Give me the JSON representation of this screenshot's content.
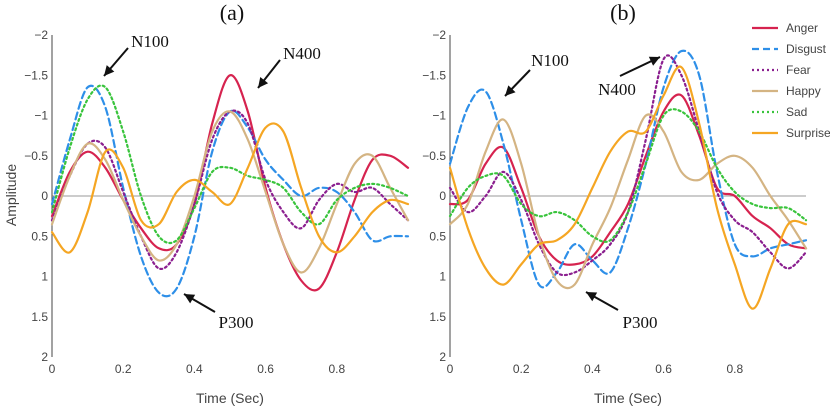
{
  "chart_data": [
    {
      "type": "line",
      "title": "(a)",
      "xlabel": "Time (Sec)",
      "ylabel": "Amplitude",
      "xlim": [
        0,
        1.0
      ],
      "ylim": [
        2,
        -2
      ],
      "y_inverted": true,
      "x_ticks": [
        "0",
        "0.2",
        "0.4",
        "0.6",
        "0.8"
      ],
      "y_ticks": [
        "−2",
        "−1.5",
        "−1",
        "−0.5",
        "0",
        "0.5",
        "1",
        "1.5",
        "2"
      ],
      "x_tick_values": [
        0,
        0.2,
        0.4,
        0.6,
        0.8
      ],
      "y_tick_values": [
        -2,
        -1.5,
        -1,
        -0.5,
        0,
        0.5,
        1,
        1.5,
        2
      ],
      "annotations": [
        {
          "text": "N100",
          "x": 0.13,
          "y": -1.38
        },
        {
          "text": "N400",
          "x": 0.58,
          "y": -1.15
        },
        {
          "text": "P300",
          "x": 0.35,
          "y": 1.25
        }
      ],
      "series": [
        {
          "name": "Anger",
          "color": "#d6234f",
          "dash": "solid",
          "x": [
            0,
            0.05,
            0.1,
            0.15,
            0.2,
            0.25,
            0.3,
            0.35,
            0.4,
            0.45,
            0.5,
            0.55,
            0.6,
            0.65,
            0.7,
            0.75,
            0.8,
            0.85,
            0.9,
            0.95,
            1.0
          ],
          "y": [
            0.25,
            -0.3,
            -0.55,
            -0.35,
            0.05,
            0.4,
            0.65,
            0.6,
            0.1,
            -0.9,
            -1.5,
            -1.05,
            -0.1,
            0.6,
            1.05,
            1.15,
            0.7,
            0.05,
            -0.45,
            -0.5,
            -0.35
          ]
        },
        {
          "name": "Disgust",
          "color": "#2e8fe8",
          "dash": "dashed",
          "x": [
            0,
            0.05,
            0.1,
            0.15,
            0.2,
            0.25,
            0.3,
            0.35,
            0.4,
            0.45,
            0.5,
            0.55,
            0.6,
            0.65,
            0.7,
            0.75,
            0.8,
            0.85,
            0.9,
            0.95,
            1.0
          ],
          "y": [
            0.1,
            -0.7,
            -1.35,
            -1.1,
            -0.1,
            0.75,
            1.2,
            1.15,
            0.5,
            -0.55,
            -1.05,
            -0.85,
            -0.45,
            -0.2,
            0.0,
            -0.1,
            -0.05,
            0.2,
            0.55,
            0.5,
            0.5
          ]
        },
        {
          "name": "Fear",
          "color": "#8b1f8f",
          "dash": "dotted",
          "x": [
            0,
            0.05,
            0.1,
            0.15,
            0.2,
            0.25,
            0.3,
            0.35,
            0.4,
            0.45,
            0.5,
            0.55,
            0.6,
            0.65,
            0.7,
            0.75,
            0.8,
            0.85,
            0.9,
            0.95,
            1.0
          ],
          "y": [
            0.3,
            -0.25,
            -0.65,
            -0.6,
            -0.05,
            0.5,
            0.9,
            0.7,
            0.1,
            -0.7,
            -1.05,
            -0.9,
            -0.2,
            0.2,
            0.4,
            0.05,
            -0.15,
            -0.05,
            -0.1,
            0.1,
            0.3
          ]
        },
        {
          "name": "Happy",
          "color": "#d4b483",
          "dash": "solid",
          "x": [
            0,
            0.05,
            0.1,
            0.15,
            0.2,
            0.25,
            0.3,
            0.35,
            0.4,
            0.45,
            0.5,
            0.55,
            0.6,
            0.65,
            0.7,
            0.75,
            0.8,
            0.85,
            0.9,
            0.95,
            1.0
          ],
          "y": [
            0.35,
            -0.25,
            -0.65,
            -0.45,
            0.05,
            0.5,
            0.8,
            0.6,
            0.0,
            -0.8,
            -1.05,
            -0.7,
            -0.05,
            0.6,
            0.95,
            0.65,
            0.1,
            -0.4,
            -0.5,
            -0.1,
            0.3
          ]
        },
        {
          "name": "Sad",
          "color": "#39c43c",
          "dash": "dotted",
          "x": [
            0,
            0.05,
            0.1,
            0.15,
            0.2,
            0.25,
            0.3,
            0.35,
            0.4,
            0.45,
            0.5,
            0.55,
            0.6,
            0.65,
            0.7,
            0.75,
            0.8,
            0.85,
            0.9,
            0.95,
            1.0
          ],
          "y": [
            0.2,
            -0.6,
            -1.2,
            -1.35,
            -0.8,
            0.0,
            0.5,
            0.55,
            0.15,
            -0.3,
            -0.35,
            -0.25,
            -0.2,
            -0.1,
            0.2,
            0.35,
            0.05,
            -0.1,
            -0.15,
            -0.1,
            0.0
          ]
        },
        {
          "name": "Surprise",
          "color": "#f5a623",
          "dash": "solid",
          "x": [
            0,
            0.05,
            0.1,
            0.15,
            0.2,
            0.25,
            0.3,
            0.35,
            0.4,
            0.45,
            0.5,
            0.55,
            0.6,
            0.65,
            0.7,
            0.75,
            0.8,
            0.85,
            0.9,
            0.95,
            1.0
          ],
          "y": [
            0.45,
            0.7,
            0.2,
            -0.55,
            -0.35,
            0.3,
            0.35,
            -0.05,
            -0.2,
            -0.05,
            0.1,
            -0.35,
            -0.85,
            -0.8,
            -0.1,
            0.5,
            0.7,
            0.5,
            0.2,
            0.05,
            0.1
          ]
        }
      ]
    },
    {
      "type": "line",
      "title": "(b)",
      "xlabel": "Time (Sec)",
      "ylabel": "",
      "xlim": [
        0,
        1.0
      ],
      "ylim": [
        2,
        -2
      ],
      "y_inverted": true,
      "x_ticks": [
        "0",
        "0.2",
        "0.4",
        "0.6",
        "0.8"
      ],
      "y_ticks": [
        "−2",
        "−1.5",
        "−1",
        "−0.5",
        "0",
        "0.5",
        "1",
        "1.5",
        "2"
      ],
      "x_tick_values": [
        0,
        0.2,
        0.4,
        0.6,
        0.8
      ],
      "y_tick_values": [
        -2,
        -1.5,
        -1,
        -0.5,
        0,
        0.5,
        1,
        1.5,
        2
      ],
      "annotations": [
        {
          "text": "N100",
          "x": 0.16,
          "y": -1.35
        },
        {
          "text": "N400",
          "x": 0.5,
          "y": -1.3
        },
        {
          "text": "P300",
          "x": 0.38,
          "y": 1.3
        }
      ],
      "series": [
        {
          "name": "Anger",
          "color": "#d6234f",
          "dash": "solid",
          "x": [
            0,
            0.05,
            0.1,
            0.15,
            0.2,
            0.25,
            0.3,
            0.35,
            0.4,
            0.45,
            0.5,
            0.55,
            0.6,
            0.65,
            0.7,
            0.75,
            0.8,
            0.85,
            0.9,
            0.95,
            1.0
          ],
          "y": [
            0.1,
            0.05,
            -0.4,
            -0.6,
            -0.1,
            0.5,
            0.8,
            0.85,
            0.75,
            0.45,
            0.1,
            -0.5,
            -1.05,
            -1.25,
            -0.75,
            -0.1,
            0.0,
            0.25,
            0.4,
            0.6,
            0.65
          ]
        },
        {
          "name": "Disgust",
          "color": "#2e8fe8",
          "dash": "dashed",
          "x": [
            0,
            0.05,
            0.1,
            0.15,
            0.2,
            0.25,
            0.3,
            0.35,
            0.4,
            0.45,
            0.5,
            0.55,
            0.6,
            0.65,
            0.7,
            0.75,
            0.8,
            0.85,
            0.9,
            0.95,
            1.0
          ],
          "y": [
            -0.4,
            -1.1,
            -1.3,
            -0.65,
            0.3,
            1.1,
            0.95,
            0.6,
            0.8,
            0.95,
            0.4,
            -0.4,
            -1.35,
            -1.8,
            -1.5,
            -0.3,
            0.6,
            0.75,
            0.65,
            0.6,
            0.55
          ]
        },
        {
          "name": "Fear",
          "color": "#8b1f8f",
          "dash": "dotted",
          "x": [
            0,
            0.05,
            0.1,
            0.15,
            0.2,
            0.25,
            0.3,
            0.35,
            0.4,
            0.45,
            0.5,
            0.55,
            0.6,
            0.65,
            0.7,
            0.75,
            0.8,
            0.85,
            0.9,
            0.95,
            1.0
          ],
          "y": [
            -0.1,
            0.2,
            0.0,
            -0.3,
            0.05,
            0.6,
            0.95,
            0.95,
            0.8,
            0.6,
            0.2,
            -0.7,
            -1.7,
            -1.5,
            -0.8,
            -0.05,
            0.3,
            0.45,
            0.7,
            0.9,
            0.7
          ]
        },
        {
          "name": "Happy",
          "color": "#d4b483",
          "dash": "solid",
          "x": [
            0,
            0.05,
            0.1,
            0.15,
            0.2,
            0.25,
            0.3,
            0.35,
            0.4,
            0.45,
            0.5,
            0.55,
            0.6,
            0.65,
            0.7,
            0.75,
            0.8,
            0.85,
            0.9,
            0.95,
            1.0
          ],
          "y": [
            0.35,
            0.1,
            -0.55,
            -0.95,
            -0.4,
            0.5,
            1.05,
            1.1,
            0.6,
            0.15,
            -0.45,
            -1.0,
            -0.8,
            -0.3,
            -0.2,
            -0.4,
            -0.5,
            -0.35,
            0.0,
            0.3,
            0.65
          ]
        },
        {
          "name": "Sad",
          "color": "#39c43c",
          "dash": "dotted",
          "x": [
            0,
            0.05,
            0.1,
            0.15,
            0.2,
            0.25,
            0.3,
            0.35,
            0.4,
            0.45,
            0.5,
            0.55,
            0.6,
            0.65,
            0.7,
            0.75,
            0.8,
            0.85,
            0.9,
            0.95,
            1.0
          ],
          "y": [
            0.25,
            -0.1,
            -0.25,
            -0.25,
            0.1,
            0.25,
            0.2,
            0.3,
            0.5,
            0.55,
            0.2,
            -0.4,
            -1.0,
            -1.05,
            -0.8,
            -0.35,
            -0.05,
            0.1,
            0.15,
            0.15,
            0.3
          ]
        },
        {
          "name": "Surprise",
          "color": "#f5a623",
          "dash": "solid",
          "x": [
            0,
            0.05,
            0.1,
            0.15,
            0.2,
            0.25,
            0.3,
            0.35,
            0.4,
            0.45,
            0.5,
            0.55,
            0.6,
            0.65,
            0.7,
            0.75,
            0.8,
            0.85,
            0.9,
            0.95,
            1.0
          ],
          "y": [
            -0.35,
            0.4,
            0.9,
            1.1,
            0.85,
            0.6,
            0.55,
            0.35,
            -0.1,
            -0.55,
            -0.8,
            -0.8,
            -1.25,
            -1.6,
            -0.9,
            0.15,
            0.85,
            1.4,
            0.9,
            0.35,
            0.35
          ]
        }
      ]
    }
  ],
  "legend": {
    "position": "top-right",
    "items": [
      {
        "name": "Anger",
        "color": "#d6234f",
        "dash": "solid"
      },
      {
        "name": "Disgust",
        "color": "#2e8fe8",
        "dash": "dashed"
      },
      {
        "name": "Fear",
        "color": "#8b1f8f",
        "dash": "dotted"
      },
      {
        "name": "Happy",
        "color": "#d4b483",
        "dash": "solid"
      },
      {
        "name": "Sad",
        "color": "#39c43c",
        "dash": "dotted"
      },
      {
        "name": "Surprise",
        "color": "#f5a623",
        "dash": "solid"
      }
    ]
  },
  "style": {
    "axis_color": "#444444",
    "zero_line_color": "#999999",
    "background": "#ffffff"
  }
}
